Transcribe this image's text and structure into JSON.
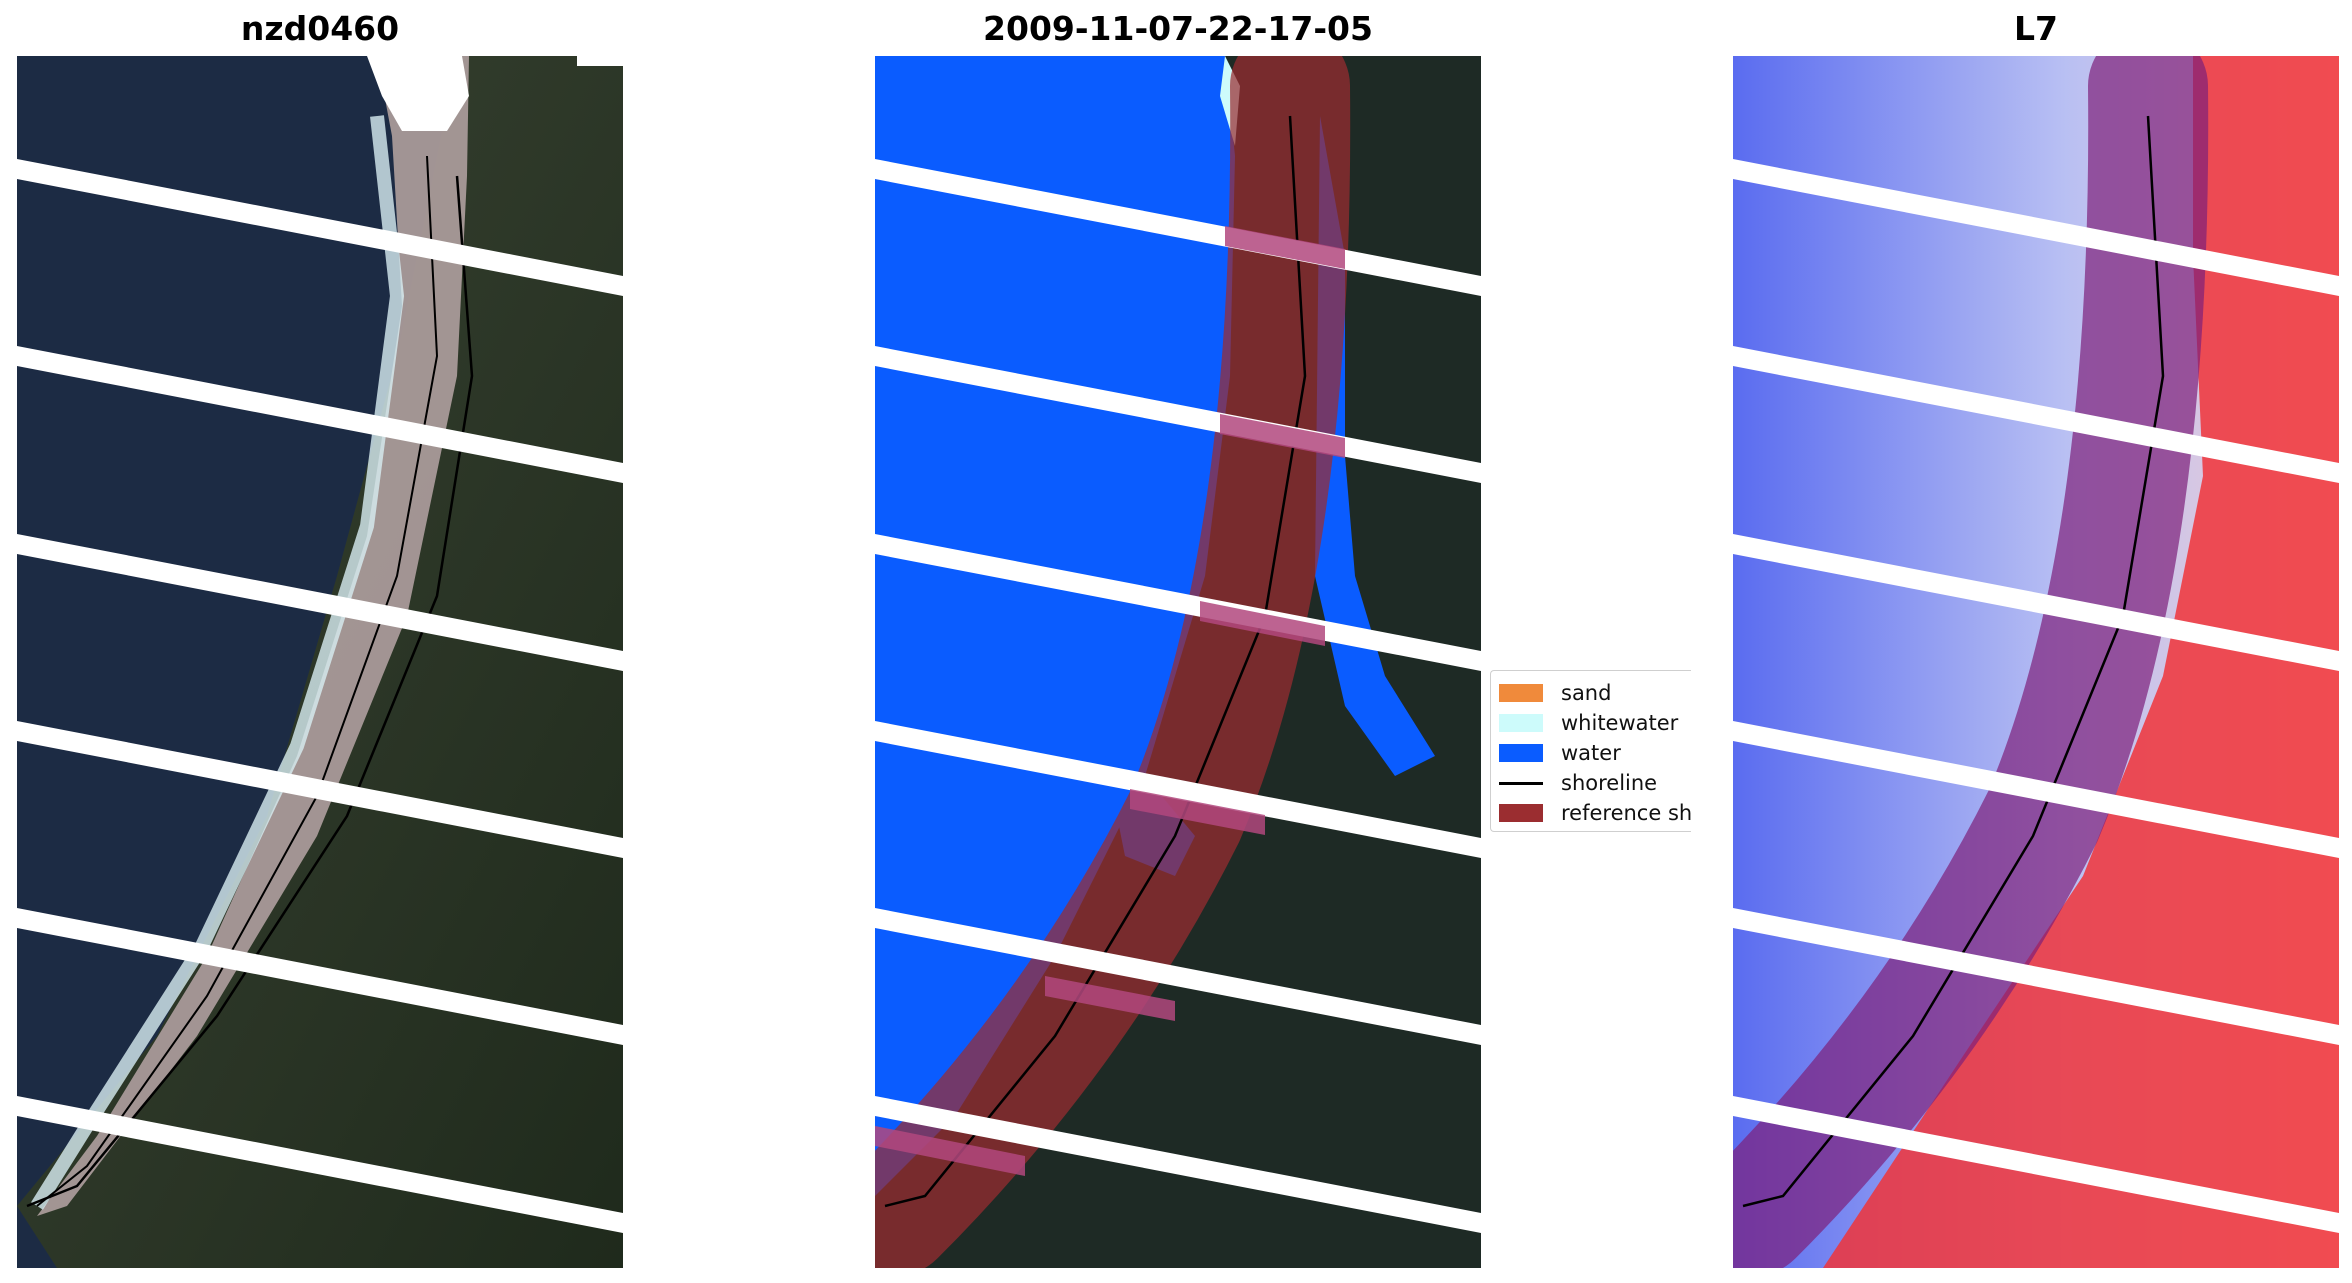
{
  "panels": [
    {
      "title": "nzd0460"
    },
    {
      "title": "2009-11-07-22-17-05"
    },
    {
      "title": "L7"
    }
  ],
  "legend": {
    "items": [
      {
        "label": "sand",
        "color": "#f08a3b"
      },
      {
        "label": "whitewater",
        "color": "#cdfbfb"
      },
      {
        "label": "water",
        "color": "#0a5cff"
      },
      {
        "label": "shoreline",
        "color": "#000000"
      },
      {
        "label": "reference shoreline",
        "color": "#9b2d30"
      }
    ]
  },
  "colors": {
    "ocean": "#1c2b44",
    "land": "#2a3325",
    "beach": "#a99a99",
    "scanline_gap": "#ffffff",
    "index_negative": "#5a6cf0",
    "index_positive": "#f0343a"
  }
}
